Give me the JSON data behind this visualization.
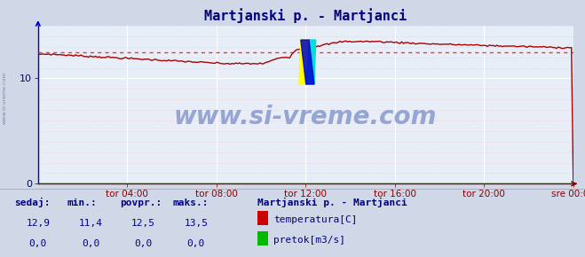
{
  "title": "Martjanski p. - Martjanci",
  "bg_color": "#d0d8e8",
  "plot_bg_color": "#e8eef8",
  "grid_color": "#ffffff",
  "grid_minor_color": "#ffaaaa",
  "title_color": "#000080",
  "axis_left_color": "#0000cc",
  "axis_bottom_color": "#880000",
  "tick_color": "#000080",
  "watermark": "www.si-vreme.com",
  "watermark_color": "#8899cc",
  "x_labels": [
    "tor 04:00",
    "tor 08:00",
    "tor 12:00",
    "tor 16:00",
    "tor 20:00",
    "sre 00:00"
  ],
  "x_ticks_norm": [
    0.1667,
    0.3333,
    0.5,
    0.6667,
    0.8333,
    1.0
  ],
  "ylim": [
    0,
    15.0
  ],
  "yticks": [
    0,
    10
  ],
  "temp_avg": 12.5,
  "avg_line_color": "#ff3333",
  "temp_line_color": "#aa0000",
  "flow_line_color": "#00aa00",
  "legend_title": "Martjanski p. - Martjanci",
  "legend_title_color": "#000080",
  "legend_label1": "temperatura[C]",
  "legend_label2": "pretok[m3/s]",
  "legend_color1": "#cc0000",
  "legend_color2": "#00bb00",
  "stats_labels": [
    "sedaj:",
    "min.:",
    "povpr.:",
    "maks.:"
  ],
  "stats_color": "#000080",
  "temp_stats": [
    "12,9",
    "11,4",
    "12,5",
    "13,5"
  ],
  "flow_stats": [
    "0,0",
    "0,0",
    "0,0",
    "0,0"
  ],
  "logo_yellow": "#ffff00",
  "logo_cyan": "#00dddd",
  "logo_blue": "#0000cc"
}
